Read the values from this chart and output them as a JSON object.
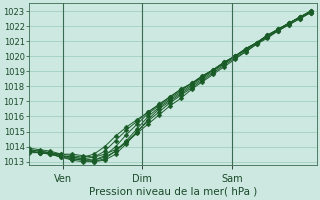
{
  "title": "",
  "xlabel": "Pression niveau de la mer( hPa )",
  "ylabel": "",
  "bg_color": "#cce8e0",
  "grid_color": "#99ccbb",
  "line_color": "#1a5c28",
  "marker": "D",
  "marker_size": 2.5,
  "ylim": [
    1012.8,
    1023.5
  ],
  "yticks": [
    1013,
    1014,
    1015,
    1016,
    1017,
    1018,
    1019,
    1020,
    1021,
    1022,
    1023
  ],
  "xtick_labels": [
    "Ven",
    "Dim",
    "Sam"
  ],
  "xtick_positions": [
    0.12,
    0.4,
    0.72
  ],
  "vline_positions": [
    0.12,
    0.4,
    0.72
  ],
  "series": [
    [
      1013.6,
      1013.6,
      1013.6,
      1013.5,
      1013.5,
      1013.4,
      1013.3,
      1013.5,
      1013.8,
      1014.3,
      1014.9,
      1015.5,
      1016.1,
      1016.7,
      1017.2,
      1017.8,
      1018.3,
      1018.8,
      1019.3,
      1019.8,
      1020.3,
      1020.8,
      1021.3,
      1021.7,
      1022.2,
      1022.6,
      1023.0
    ],
    [
      1013.7,
      1013.6,
      1013.5,
      1013.4,
      1013.3,
      1013.2,
      1013.1,
      1013.3,
      1013.7,
      1014.3,
      1015.0,
      1015.7,
      1016.3,
      1016.9,
      1017.4,
      1017.9,
      1018.4,
      1018.9,
      1019.4,
      1019.9,
      1020.3,
      1020.8,
      1021.2,
      1021.7,
      1022.1,
      1022.5,
      1022.9
    ],
    [
      1013.7,
      1013.6,
      1013.5,
      1013.3,
      1013.2,
      1013.1,
      1013.0,
      1013.1,
      1013.5,
      1014.2,
      1015.0,
      1015.8,
      1016.5,
      1017.0,
      1017.5,
      1018.0,
      1018.5,
      1019.0,
      1019.5,
      1020.0,
      1020.4,
      1020.9,
      1021.3,
      1021.8,
      1022.2,
      1022.6,
      1023.0
    ],
    [
      1013.7,
      1013.6,
      1013.5,
      1013.3,
      1013.1,
      1013.0,
      1013.0,
      1013.2,
      1013.7,
      1014.4,
      1015.2,
      1016.0,
      1016.6,
      1017.1,
      1017.6,
      1018.1,
      1018.6,
      1019.1,
      1019.5,
      1020.0,
      1020.5,
      1020.9,
      1021.4,
      1021.8,
      1022.2,
      1022.6,
      1023.0
    ],
    [
      1013.8,
      1013.7,
      1013.6,
      1013.4,
      1013.2,
      1013.1,
      1013.1,
      1013.4,
      1014.0,
      1014.8,
      1015.5,
      1016.2,
      1016.7,
      1017.2,
      1017.7,
      1018.2,
      1018.6,
      1019.1,
      1019.6,
      1020.0,
      1020.5,
      1020.9,
      1021.4,
      1021.8,
      1022.2,
      1022.6,
      1023.0
    ],
    [
      1013.8,
      1013.7,
      1013.6,
      1013.4,
      1013.3,
      1013.2,
      1013.3,
      1013.7,
      1014.4,
      1015.1,
      1015.7,
      1016.3,
      1016.8,
      1017.3,
      1017.8,
      1018.2,
      1018.7,
      1019.1,
      1019.6,
      1020.0,
      1020.5,
      1020.9,
      1021.4,
      1021.8,
      1022.2,
      1022.6,
      1022.9
    ],
    [
      1013.9,
      1013.8,
      1013.7,
      1013.5,
      1013.4,
      1013.3,
      1013.5,
      1014.0,
      1014.7,
      1015.3,
      1015.8,
      1016.3,
      1016.8,
      1017.3,
      1017.8,
      1018.2,
      1018.7,
      1019.1,
      1019.6,
      1020.0,
      1020.4,
      1020.9,
      1021.3,
      1021.7,
      1022.1,
      1022.5,
      1022.9
    ]
  ]
}
